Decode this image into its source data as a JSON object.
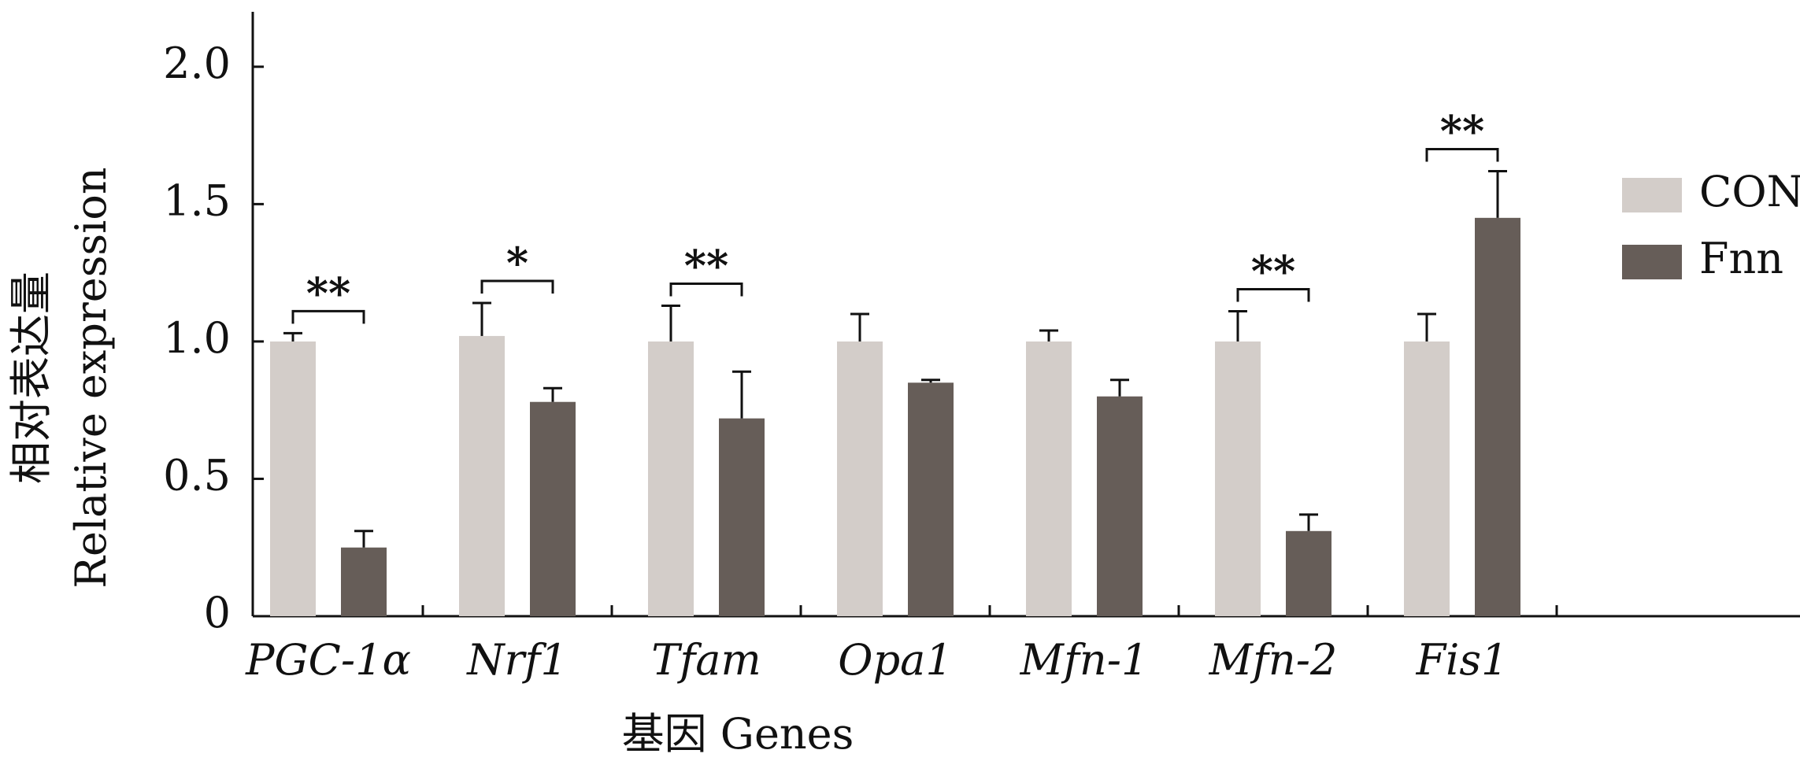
{
  "chart_data": {
    "type": "bar",
    "y_label_lines": [
      "相对表达量",
      "Relative expression"
    ],
    "x_label": "基因 Genes",
    "categories": [
      "PGC-1α",
      "Nrf1",
      "Tfam",
      "Opa1",
      "Mfn-1",
      "Mfn-2",
      "Fis1"
    ],
    "series": [
      {
        "name": "CON",
        "color": "#d3cdc9",
        "values": [
          1.0,
          1.02,
          1.0,
          1.0,
          1.0,
          1.0,
          1.0
        ],
        "errors": [
          0.03,
          0.12,
          0.13,
          0.1,
          0.04,
          0.11,
          0.1
        ]
      },
      {
        "name": "Fnn",
        "color": "#665d58",
        "values": [
          0.25,
          0.78,
          0.72,
          0.85,
          0.8,
          0.31,
          1.45
        ],
        "errors": [
          0.06,
          0.05,
          0.17,
          0.01,
          0.06,
          0.06,
          0.17
        ]
      }
    ],
    "significance": [
      "**",
      "*",
      "**",
      null,
      null,
      "**",
      "**"
    ],
    "ylim": [
      0,
      2.2
    ],
    "yticks": [
      0,
      0.5,
      {
        "value": 1,
        "label": "1.0"
      },
      1.5,
      {
        "value": 2,
        "label": "2.0"
      }
    ],
    "legend": "right"
  }
}
